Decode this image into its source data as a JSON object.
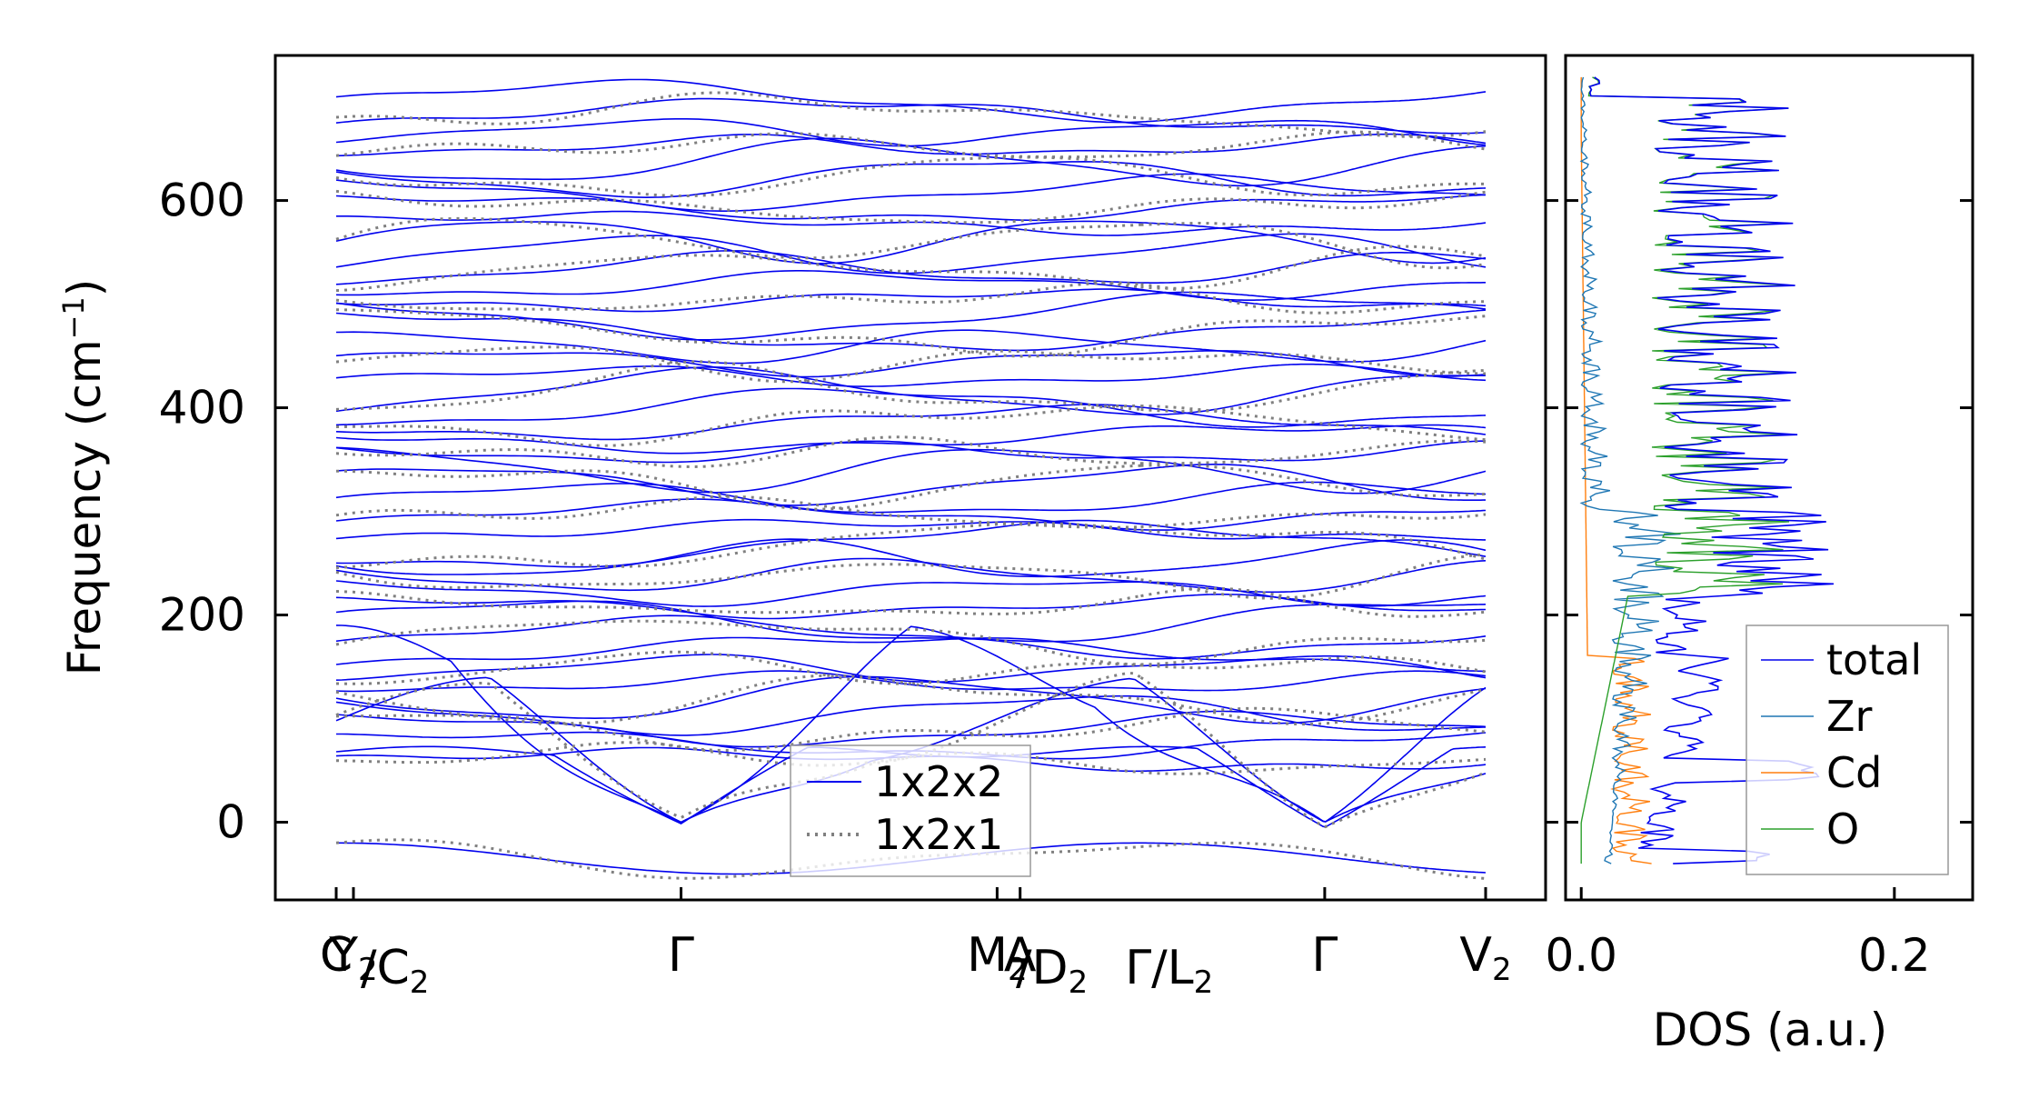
{
  "chart_data": [
    {
      "type": "line",
      "title": "",
      "xlabel": "",
      "ylabel": "Frequency (cm",
      "ylabel_sup": "−1",
      "ylabel_close": ")",
      "ylim": [
        -75,
        740
      ],
      "yticks": [
        0,
        200,
        400,
        600
      ],
      "ytick_labels": [
        "0",
        "200",
        "400",
        "600"
      ],
      "kpath": {
        "labels": [
          {
            "text": "C",
            "sub": "",
            "pos": 0.0
          },
          {
            "text": "Y",
            "sub": "2",
            "pos": 0.015
          },
          {
            "text": "Γ",
            "sub": "",
            "pos": 0.3
          },
          {
            "text": "M",
            "sub": "2",
            "pos": 0.575
          },
          {
            "text": "A",
            "sub": "",
            "pos": 0.595
          },
          {
            "text": "Γ",
            "sub": "",
            "pos": 0.86
          },
          {
            "text": "V",
            "sub": "2",
            "pos": 1.0
          }
        ],
        "slash_labels": [
          {
            "text": "/C",
            "sub": "2",
            "pos": 0.015
          },
          {
            "text": "/D",
            "sub": "2",
            "pos": 0.585
          },
          {
            "text": "Γ/L",
            "sub": "2",
            "pos": 0.68
          }
        ],
        "segment_break": 0.7
      },
      "series": [
        {
          "name": "1x2x2",
          "color": "#0000ee",
          "style": "solid"
        },
        {
          "name": "1x2x1",
          "color": "#808080",
          "style": "dotted"
        }
      ],
      "legend_placement": "lower-center"
    },
    {
      "type": "line",
      "title": "",
      "xlabel": "DOS (a.u.)",
      "ylabel": "",
      "xlim": [
        -0.01,
        0.25
      ],
      "xticks": [
        0.0,
        0.2
      ],
      "xtick_labels": [
        "0.0",
        "0.2"
      ],
      "ylim": [
        -75,
        740
      ],
      "series": [
        {
          "name": "total",
          "color": "#0000ee"
        },
        {
          "name": "Zr",
          "color": "#1f77b4"
        },
        {
          "name": "Cd",
          "color": "#ff7f0e"
        },
        {
          "name": "O",
          "color": "#2ca02c"
        }
      ],
      "legend_placement": "lower-right"
    }
  ]
}
